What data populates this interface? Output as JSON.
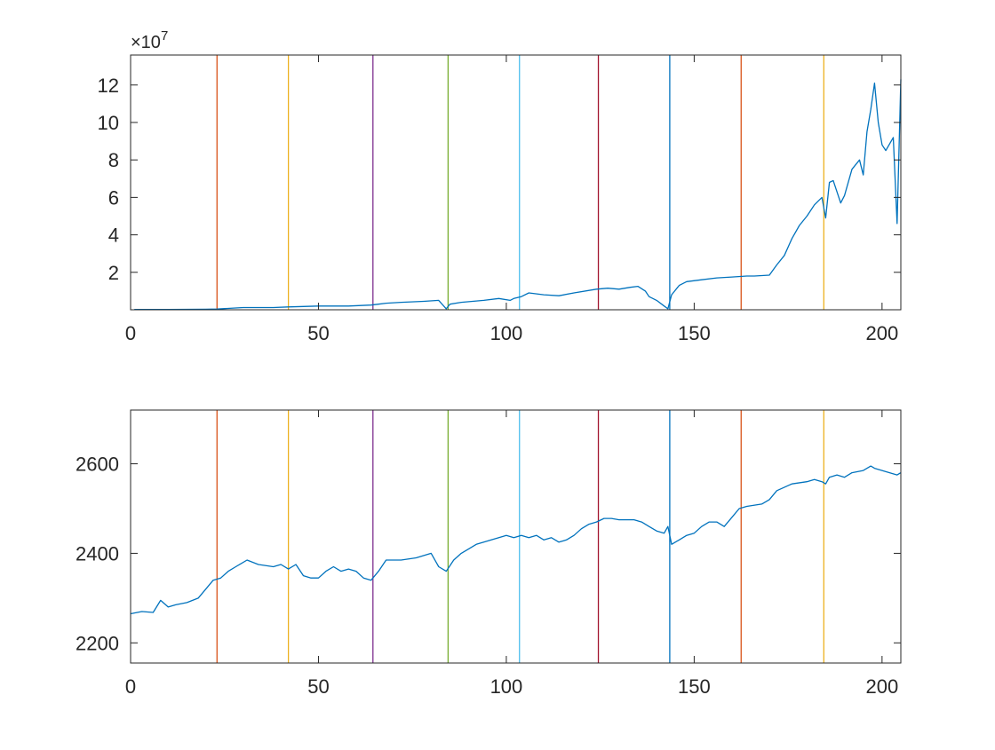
{
  "chart_data": [
    {
      "type": "line",
      "title": "",
      "xlabel": "",
      "ylabel": "",
      "exponent_label": "×10",
      "exponent_power": "7",
      "xlim": [
        0,
        205
      ],
      "ylim": [
        0,
        13.6
      ],
      "xticks": [
        0,
        50,
        100,
        150,
        200
      ],
      "yticks": [
        2,
        4,
        6,
        8,
        10,
        12
      ],
      "grid": false,
      "line_color": "#0072BD",
      "vlines": [
        {
          "x": 23,
          "color": "#D95319"
        },
        {
          "x": 42,
          "color": "#EDB120"
        },
        {
          "x": 64.5,
          "color": "#7E2F8E"
        },
        {
          "x": 84.5,
          "color": "#77AC30"
        },
        {
          "x": 103.5,
          "color": "#4DBEEE"
        },
        {
          "x": 124.5,
          "color": "#A2142F"
        },
        {
          "x": 143.5,
          "color": "#0072BD"
        },
        {
          "x": 162.5,
          "color": "#D95319"
        },
        {
          "x": 184.5,
          "color": "#EDB120"
        }
      ],
      "series": [
        {
          "x": [
            1,
            10,
            20,
            23,
            30,
            38,
            42,
            50,
            58,
            64,
            66,
            68,
            72,
            78,
            82,
            84,
            85,
            88,
            94,
            98,
            101,
            102,
            104,
            106,
            110,
            114,
            118,
            124,
            127,
            130,
            133,
            135,
            137,
            138,
            140,
            142,
            143,
            144,
            146,
            148,
            152,
            156,
            160,
            164,
            166,
            170,
            172,
            174,
            176,
            178,
            180,
            182,
            184,
            185,
            186,
            187,
            189,
            190,
            192,
            194,
            195,
            196,
            197,
            198,
            199,
            200,
            201,
            203,
            204,
            205
          ],
          "values": [
            0.02,
            0.02,
            0.03,
            0.04,
            0.12,
            0.12,
            0.15,
            0.2,
            0.2,
            0.25,
            0.3,
            0.35,
            0.4,
            0.45,
            0.5,
            0.05,
            0.3,
            0.4,
            0.5,
            0.6,
            0.5,
            0.6,
            0.7,
            0.9,
            0.8,
            0.75,
            0.9,
            1.1,
            1.15,
            1.1,
            1.2,
            1.25,
            1.0,
            0.7,
            0.5,
            0.2,
            0.05,
            0.8,
            1.3,
            1.5,
            1.6,
            1.7,
            1.75,
            1.8,
            1.8,
            1.85,
            2.4,
            2.9,
            3.8,
            4.5,
            5.0,
            5.6,
            6.0,
            4.9,
            6.8,
            6.9,
            5.7,
            6.1,
            7.5,
            8.0,
            7.2,
            9.5,
            10.7,
            12.1,
            10.0,
            8.8,
            8.5,
            9.2,
            4.6,
            12.3
          ]
        }
      ]
    },
    {
      "type": "line",
      "title": "",
      "xlabel": "",
      "ylabel": "",
      "xlim": [
        0,
        205
      ],
      "ylim": [
        2155,
        2720
      ],
      "xticks": [
        0,
        50,
        100,
        150,
        200
      ],
      "yticks": [
        2200,
        2400,
        2600
      ],
      "grid": false,
      "line_color": "#0072BD",
      "vlines": [
        {
          "x": 23,
          "color": "#D95319"
        },
        {
          "x": 42,
          "color": "#EDB120"
        },
        {
          "x": 64.5,
          "color": "#7E2F8E"
        },
        {
          "x": 84.5,
          "color": "#77AC30"
        },
        {
          "x": 103.5,
          "color": "#4DBEEE"
        },
        {
          "x": 124.5,
          "color": "#A2142F"
        },
        {
          "x": 143.5,
          "color": "#0072BD"
        },
        {
          "x": 162.5,
          "color": "#D95319"
        },
        {
          "x": 184.5,
          "color": "#EDB120"
        }
      ],
      "series": [
        {
          "x": [
            0,
            3,
            6,
            8,
            10,
            12,
            15,
            18,
            22,
            24,
            26,
            28,
            31,
            34,
            38,
            40,
            42,
            44,
            46,
            48,
            50,
            52,
            54,
            56,
            58,
            60,
            62,
            64,
            66,
            68,
            72,
            76,
            80,
            82,
            84,
            86,
            88,
            90,
            92,
            94,
            96,
            98,
            100,
            102,
            104,
            106,
            108,
            110,
            112,
            114,
            116,
            118,
            120,
            122,
            124,
            126,
            128,
            130,
            134,
            136,
            138,
            140,
            142,
            143,
            144,
            146,
            148,
            150,
            152,
            154,
            156,
            158,
            160,
            162,
            164,
            168,
            170,
            172,
            176,
            180,
            182,
            184,
            185,
            186,
            188,
            190,
            192,
            195,
            197,
            198,
            200,
            202,
            204,
            205
          ],
          "values": [
            2265,
            2270,
            2268,
            2295,
            2280,
            2285,
            2290,
            2300,
            2340,
            2345,
            2360,
            2370,
            2385,
            2375,
            2370,
            2375,
            2365,
            2375,
            2350,
            2345,
            2345,
            2360,
            2370,
            2360,
            2365,
            2360,
            2345,
            2340,
            2360,
            2385,
            2385,
            2390,
            2400,
            2370,
            2360,
            2385,
            2400,
            2410,
            2420,
            2425,
            2430,
            2435,
            2440,
            2435,
            2440,
            2435,
            2440,
            2430,
            2435,
            2425,
            2430,
            2440,
            2455,
            2465,
            2470,
            2478,
            2478,
            2475,
            2475,
            2470,
            2460,
            2450,
            2445,
            2460,
            2420,
            2430,
            2440,
            2445,
            2460,
            2470,
            2470,
            2460,
            2480,
            2500,
            2505,
            2510,
            2520,
            2540,
            2555,
            2560,
            2565,
            2560,
            2555,
            2570,
            2575,
            2570,
            2580,
            2585,
            2595,
            2590,
            2585,
            2580,
            2575,
            2580
          ]
        }
      ]
    }
  ]
}
